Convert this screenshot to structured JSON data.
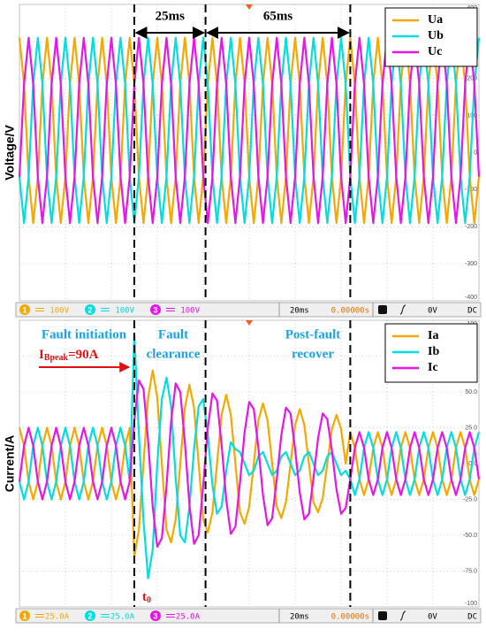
{
  "chart_data": [
    {
      "type": "line",
      "y_label": "Voltage/V",
      "unit_tag": "V)",
      "legend": "upper right",
      "grid": true,
      "xlim": [
        0,
        200
      ],
      "xticks": [
        0,
        20,
        40,
        60,
        80,
        100,
        120,
        140,
        160,
        180,
        200
      ],
      "ylim": [
        -400,
        400
      ],
      "yticks": [
        -400,
        -300,
        -200,
        -100,
        0,
        100,
        200,
        300,
        400
      ],
      "markers": [
        50,
        81,
        144
      ],
      "annotations": [
        "25ms",
        "65ms"
      ],
      "status": {
        "channels": [
          {
            "number": "1",
            "scale": "100V"
          },
          {
            "number": "2",
            "scale": "100V"
          },
          {
            "number": "3",
            "scale": "100V"
          }
        ],
        "timebase": "20ms",
        "delay": "0.00000s",
        "trigger_level": "0V",
        "coupling": "DC"
      },
      "x": [
        0,
        2,
        4,
        6,
        8,
        10,
        12,
        14,
        16,
        18,
        20,
        22,
        24,
        26,
        28,
        30,
        32,
        34,
        36,
        38,
        40,
        42,
        44,
        46,
        48,
        50,
        52,
        54,
        56,
        58,
        60,
        62,
        64,
        66,
        68,
        70,
        72,
        74,
        76,
        78,
        80,
        82,
        84,
        86,
        88,
        90,
        92,
        94,
        96,
        98,
        100,
        102,
        104,
        106,
        108,
        110,
        112,
        114,
        116,
        118,
        120,
        122,
        124,
        126,
        128,
        130,
        132,
        134,
        136,
        138,
        140,
        142,
        144,
        146,
        148,
        150,
        152,
        154,
        156,
        158,
        160,
        162,
        164,
        166,
        168,
        170,
        172,
        174,
        176,
        178,
        180,
        182,
        184,
        186,
        188,
        190,
        192,
        194,
        196,
        198,
        200
      ],
      "series": [
        {
          "name": "Ua",
          "color": "#f5a800",
          "values": [
            310,
            185,
            -65,
            -190,
            -65,
            185,
            310,
            185,
            -65,
            -190,
            -65,
            185,
            310,
            185,
            -65,
            -190,
            -65,
            185,
            310,
            185,
            -65,
            -190,
            -65,
            185,
            310,
            185,
            -65,
            -190,
            -65,
            185,
            310,
            185,
            -65,
            -190,
            -65,
            185,
            310,
            185,
            -65,
            -190,
            -65,
            185,
            310,
            185,
            -65,
            -190,
            -65,
            185,
            310,
            185,
            -65,
            -190,
            -65,
            185,
            310,
            185,
            -65,
            -190,
            -65,
            185,
            310,
            185,
            -65,
            -190,
            -65,
            185,
            310,
            185,
            -65,
            -190,
            -65,
            185,
            310,
            185,
            -65,
            -190,
            -65,
            185,
            310,
            185,
            -65,
            -190,
            -65,
            185,
            310,
            185,
            -65,
            -190,
            -65,
            185,
            310,
            185,
            -65,
            -190,
            -65,
            185,
            310,
            185,
            -65,
            -190,
            -65
          ]
        },
        {
          "name": "Ub",
          "color": "#00dede",
          "values": [
            -65,
            -190,
            -65,
            185,
            310,
            185,
            -65,
            -190,
            -65,
            185,
            310,
            185,
            -65,
            -190,
            -65,
            185,
            310,
            185,
            -65,
            -190,
            -65,
            185,
            310,
            185,
            -65,
            -190,
            -65,
            185,
            310,
            185,
            -65,
            -190,
            -65,
            185,
            310,
            185,
            -65,
            -190,
            -65,
            185,
            310,
            185,
            -65,
            -190,
            -65,
            185,
            310,
            185,
            -65,
            -190,
            -65,
            185,
            310,
            185,
            -65,
            -190,
            -65,
            185,
            310,
            185,
            -65,
            -190,
            -65,
            185,
            310,
            185,
            -65,
            -190,
            -65,
            185,
            310,
            185,
            -65,
            -190,
            -65,
            185,
            310,
            185,
            -65,
            -190,
            -65,
            185,
            310,
            185,
            -65,
            -190,
            -65,
            185,
            310,
            185,
            -65,
            -190,
            -65,
            185,
            310,
            185,
            -65,
            -190,
            -65,
            185,
            310
          ]
        },
        {
          "name": "Uc",
          "color": "#e815e8",
          "values": [
            -65,
            185,
            310,
            185,
            -65,
            -190,
            -65,
            185,
            310,
            185,
            -65,
            -190,
            -65,
            185,
            310,
            185,
            -65,
            -190,
            -65,
            185,
            310,
            185,
            -65,
            -190,
            -65,
            185,
            310,
            185,
            -65,
            -190,
            -65,
            185,
            310,
            185,
            -65,
            -190,
            -65,
            185,
            310,
            185,
            -65,
            -190,
            -65,
            185,
            310,
            185,
            -65,
            -190,
            -65,
            185,
            310,
            185,
            -65,
            -190,
            -65,
            185,
            310,
            185,
            -65,
            -190,
            -65,
            185,
            310,
            185,
            -65,
            -190,
            -65,
            185,
            310,
            185,
            -65,
            -190,
            -65,
            185,
            310,
            185,
            -65,
            -190,
            -65,
            185,
            310,
            185,
            -65,
            -190,
            -65,
            185,
            310,
            185,
            -65,
            -190,
            -65,
            185,
            310,
            185,
            -65,
            -190,
            -65,
            185,
            310,
            185,
            -65
          ]
        }
      ]
    },
    {
      "type": "line",
      "y_label": "Current/A",
      "unit_tag": "(A)",
      "legend": "upper right",
      "grid": true,
      "xlim": [
        0,
        200
      ],
      "xticks": [
        0,
        20,
        40,
        60,
        80,
        100,
        120,
        140,
        160,
        180,
        200
      ],
      "ylim": [
        -100,
        100
      ],
      "yticks": [
        -100,
        {
          "value": -75,
          "label": "-75.0"
        },
        {
          "value": -50,
          "label": "-50.0"
        },
        {
          "value": -25,
          "label": "-25.0"
        },
        {
          "value": 0,
          "label": "0.0"
        },
        {
          "value": 25,
          "label": "25.0"
        },
        {
          "value": 50,
          "label": "50.0"
        },
        {
          "value": 75,
          "label": "75.0"
        },
        100
      ],
      "markers": [
        50,
        81,
        144
      ],
      "annotations": {
        "fault_initiation": "Fault initiation",
        "peak": {
          "symbol": "I",
          "subscript": "Bpeak",
          "value": "=90A"
        },
        "fault_clearance": [
          "Fault",
          "clearance"
        ],
        "post_fault": [
          "Post-fault",
          "recover"
        ],
        "t0": {
          "symbol": "t",
          "subscript": "0"
        }
      },
      "status": {
        "channels": [
          {
            "number": "1",
            "scale": "25.0A"
          },
          {
            "number": "2",
            "scale": "25.0A"
          },
          {
            "number": "3",
            "scale": "25.0A"
          }
        ],
        "timebase": "20ms",
        "delay": "0.00000s",
        "trigger_level": "0V",
        "coupling": "DC"
      },
      "x": [
        0,
        2,
        4,
        6,
        8,
        10,
        12,
        14,
        16,
        18,
        20,
        22,
        24,
        26,
        28,
        30,
        32,
        34,
        36,
        38,
        40,
        42,
        44,
        46,
        48,
        50,
        52,
        54,
        56,
        58,
        60,
        62,
        64,
        66,
        68,
        70,
        72,
        74,
        76,
        78,
        80,
        82,
        84,
        86,
        88,
        90,
        92,
        94,
        96,
        98,
        100,
        102,
        104,
        106,
        108,
        110,
        112,
        114,
        116,
        118,
        120,
        122,
        124,
        126,
        128,
        130,
        132,
        134,
        136,
        138,
        140,
        142,
        144,
        146,
        148,
        150,
        152,
        154,
        156,
        158,
        160,
        162,
        164,
        166,
        168,
        170,
        172,
        174,
        176,
        178,
        180,
        182,
        184,
        186,
        188,
        190,
        192,
        194,
        196,
        198,
        200
      ],
      "series": [
        {
          "name": "Ia",
          "color": "#f5a800",
          "values": [
            25,
            12.5,
            -12.5,
            -25,
            -12.5,
            12.5,
            25,
            12.5,
            -12.5,
            -25,
            -12.5,
            12.5,
            25,
            12.5,
            -12.5,
            -25,
            -12.5,
            12.5,
            25,
            12.5,
            -12.5,
            -25,
            -12.5,
            12.5,
            25,
            -65,
            -46,
            0,
            46,
            65,
            46,
            0,
            -46,
            -55,
            -39,
            0,
            39,
            55,
            39,
            0,
            -39,
            -48,
            -34,
            0,
            34,
            48,
            34,
            0,
            -34,
            -42,
            -30,
            0,
            30,
            42,
            30,
            0,
            -30,
            -38,
            -27,
            0,
            27,
            38,
            27,
            0,
            -27,
            -34,
            -24,
            0,
            24,
            34,
            24,
            0,
            22,
            11,
            -11,
            -22,
            -11,
            11,
            22,
            11,
            -11,
            -22,
            -11,
            11,
            22,
            11,
            -11,
            -22,
            -11,
            11,
            22,
            11,
            -11,
            -22,
            -11,
            11,
            22,
            11,
            -11,
            -22,
            -11
          ]
        },
        {
          "name": "Ib",
          "color": "#00dede",
          "values": [
            -12.5,
            -25,
            -12.5,
            12.5,
            25,
            12.5,
            -12.5,
            -25,
            -12.5,
            12.5,
            25,
            12.5,
            -12.5,
            -25,
            -12.5,
            12.5,
            25,
            12.5,
            -12.5,
            -25,
            -12.5,
            12.5,
            25,
            12.5,
            -12.5,
            90,
            20,
            -40,
            -80,
            -60,
            0,
            45,
            60,
            40,
            -10,
            -50,
            -55,
            -30,
            10,
            40,
            45,
            20,
            -15,
            -35,
            -30,
            -5,
            15,
            10,
            8,
            0,
            -8,
            -5,
            5,
            8,
            0,
            -8,
            -5,
            5,
            8,
            0,
            -8,
            -5,
            5,
            8,
            0,
            -8,
            -5,
            5,
            8,
            0,
            -8,
            -5,
            -11,
            -22,
            -11,
            11,
            22,
            11,
            -11,
            -22,
            -11,
            11,
            22,
            11,
            -11,
            -22,
            -11,
            11,
            22,
            11,
            -11,
            -22,
            -11,
            11,
            22,
            11,
            -11,
            -22,
            -11,
            11,
            22
          ]
        },
        {
          "name": "Ic",
          "color": "#e815e8",
          "values": [
            -12.5,
            12.5,
            25,
            12.5,
            -12.5,
            -25,
            -12.5,
            12.5,
            25,
            12.5,
            -12.5,
            -25,
            -12.5,
            12.5,
            25,
            12.5,
            -12.5,
            -25,
            -12.5,
            12.5,
            25,
            12.5,
            -12.5,
            -25,
            -12.5,
            30,
            58,
            52,
            16,
            -30,
            -58,
            -52,
            -16,
            29,
            56,
            50,
            15,
            -29,
            -56,
            -50,
            -15,
            25,
            49,
            44,
            13,
            -25,
            -49,
            -44,
            -13,
            22,
            43,
            38,
            11,
            -22,
            -43,
            -38,
            -11,
            20,
            39,
            35,
            10,
            -20,
            -39,
            -35,
            -10,
            18,
            35,
            31,
            9,
            -18,
            -35,
            -31,
            -11,
            11,
            22,
            11,
            -11,
            -22,
            -11,
            11,
            22,
            11,
            -11,
            -22,
            -11,
            11,
            22,
            11,
            -11,
            -22,
            -11,
            11,
            22,
            11,
            -11,
            -22,
            -11,
            11,
            22,
            11,
            -11
          ]
        }
      ]
    }
  ]
}
